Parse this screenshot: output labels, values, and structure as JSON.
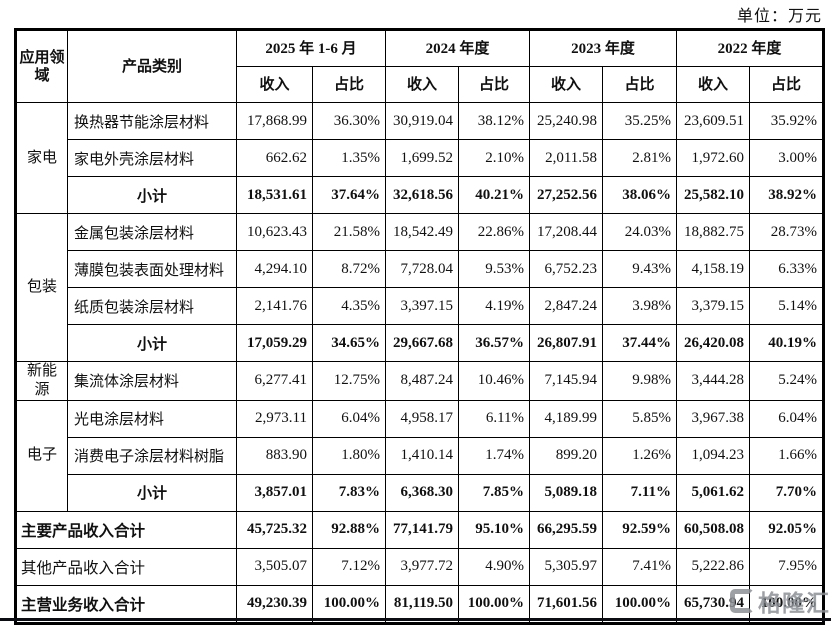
{
  "unit_label": "单位：万元",
  "watermark": {
    "text": "格隆汇"
  },
  "table": {
    "header": {
      "col_area": "应用领域",
      "col_category": "产品类别",
      "periods": [
        "2025 年 1-6 月",
        "2024 年度",
        "2023 年度",
        "2022 年度"
      ],
      "sub_income": "收入",
      "sub_ratio": "占比"
    },
    "rows": [
      {
        "cells": [
          {
            "text": "家电",
            "rowspan": 3,
            "cls": "a",
            "name": "area-cell-home-appliance"
          },
          {
            "text": "换热器节能涂层材料",
            "cls": "c",
            "name": "category-cell"
          },
          {
            "text": "17,868.99",
            "cls": "n",
            "name": "income-cell"
          },
          {
            "text": "36.30%",
            "cls": "n",
            "name": "ratio-cell"
          },
          {
            "text": "30,919.04",
            "cls": "n",
            "name": "income-cell"
          },
          {
            "text": "38.12%",
            "cls": "n",
            "name": "ratio-cell"
          },
          {
            "text": "25,240.98",
            "cls": "n",
            "name": "income-cell"
          },
          {
            "text": "35.25%",
            "cls": "n",
            "name": "ratio-cell"
          },
          {
            "text": "23,609.51",
            "cls": "n",
            "name": "income-cell"
          },
          {
            "text": "35.92%",
            "cls": "n",
            "name": "ratio-cell"
          }
        ]
      },
      {
        "cells": [
          {
            "text": "家电外壳涂层材料",
            "cls": "c",
            "name": "category-cell"
          },
          {
            "text": "662.62",
            "cls": "n",
            "name": "income-cell"
          },
          {
            "text": "1.35%",
            "cls": "n",
            "name": "ratio-cell"
          },
          {
            "text": "1,699.52",
            "cls": "n",
            "name": "income-cell"
          },
          {
            "text": "2.10%",
            "cls": "n",
            "name": "ratio-cell"
          },
          {
            "text": "2,011.58",
            "cls": "n",
            "name": "income-cell"
          },
          {
            "text": "2.81%",
            "cls": "n",
            "name": "ratio-cell"
          },
          {
            "text": "1,972.60",
            "cls": "n",
            "name": "income-cell"
          },
          {
            "text": "3.00%",
            "cls": "n",
            "name": "ratio-cell"
          }
        ]
      },
      {
        "bold": true,
        "cells": [
          {
            "text": "小计",
            "cls": "s",
            "name": "subtotal-label"
          },
          {
            "text": "18,531.61",
            "cls": "n",
            "name": "income-cell"
          },
          {
            "text": "37.64%",
            "cls": "n",
            "name": "ratio-cell"
          },
          {
            "text": "32,618.56",
            "cls": "n",
            "name": "income-cell"
          },
          {
            "text": "40.21%",
            "cls": "n",
            "name": "ratio-cell"
          },
          {
            "text": "27,252.56",
            "cls": "n",
            "name": "income-cell"
          },
          {
            "text": "38.06%",
            "cls": "n",
            "name": "ratio-cell"
          },
          {
            "text": "25,582.10",
            "cls": "n",
            "name": "income-cell"
          },
          {
            "text": "38.92%",
            "cls": "n",
            "name": "ratio-cell"
          }
        ]
      },
      {
        "cells": [
          {
            "text": "包装",
            "rowspan": 4,
            "cls": "a",
            "name": "area-cell-packaging"
          },
          {
            "text": "金属包装涂层材料",
            "cls": "c",
            "name": "category-cell"
          },
          {
            "text": "10,623.43",
            "cls": "n",
            "name": "income-cell"
          },
          {
            "text": "21.58%",
            "cls": "n",
            "name": "ratio-cell"
          },
          {
            "text": "18,542.49",
            "cls": "n",
            "name": "income-cell"
          },
          {
            "text": "22.86%",
            "cls": "n",
            "name": "ratio-cell"
          },
          {
            "text": "17,208.44",
            "cls": "n",
            "name": "income-cell"
          },
          {
            "text": "24.03%",
            "cls": "n",
            "name": "ratio-cell"
          },
          {
            "text": "18,882.75",
            "cls": "n",
            "name": "income-cell"
          },
          {
            "text": "28.73%",
            "cls": "n",
            "name": "ratio-cell"
          }
        ]
      },
      {
        "cells": [
          {
            "text": "薄膜包装表面处理材料",
            "cls": "c",
            "name": "category-cell"
          },
          {
            "text": "4,294.10",
            "cls": "n",
            "name": "income-cell"
          },
          {
            "text": "8.72%",
            "cls": "n",
            "name": "ratio-cell"
          },
          {
            "text": "7,728.04",
            "cls": "n",
            "name": "income-cell"
          },
          {
            "text": "9.53%",
            "cls": "n",
            "name": "ratio-cell"
          },
          {
            "text": "6,752.23",
            "cls": "n",
            "name": "income-cell"
          },
          {
            "text": "9.43%",
            "cls": "n",
            "name": "ratio-cell"
          },
          {
            "text": "4,158.19",
            "cls": "n",
            "name": "income-cell"
          },
          {
            "text": "6.33%",
            "cls": "n",
            "name": "ratio-cell"
          }
        ]
      },
      {
        "cells": [
          {
            "text": "纸质包装涂层材料",
            "cls": "c",
            "name": "category-cell"
          },
          {
            "text": "2,141.76",
            "cls": "n",
            "name": "income-cell"
          },
          {
            "text": "4.35%",
            "cls": "n",
            "name": "ratio-cell"
          },
          {
            "text": "3,397.15",
            "cls": "n",
            "name": "income-cell"
          },
          {
            "text": "4.19%",
            "cls": "n",
            "name": "ratio-cell"
          },
          {
            "text": "2,847.24",
            "cls": "n",
            "name": "income-cell"
          },
          {
            "text": "3.98%",
            "cls": "n",
            "name": "ratio-cell"
          },
          {
            "text": "3,379.15",
            "cls": "n",
            "name": "income-cell"
          },
          {
            "text": "5.14%",
            "cls": "n",
            "name": "ratio-cell"
          }
        ]
      },
      {
        "bold": true,
        "cells": [
          {
            "text": "小计",
            "cls": "s",
            "name": "subtotal-label"
          },
          {
            "text": "17,059.29",
            "cls": "n",
            "name": "income-cell"
          },
          {
            "text": "34.65%",
            "cls": "n",
            "name": "ratio-cell"
          },
          {
            "text": "29,667.68",
            "cls": "n",
            "name": "income-cell"
          },
          {
            "text": "36.57%",
            "cls": "n",
            "name": "ratio-cell"
          },
          {
            "text": "26,807.91",
            "cls": "n",
            "name": "income-cell"
          },
          {
            "text": "37.44%",
            "cls": "n",
            "name": "ratio-cell"
          },
          {
            "text": "26,420.08",
            "cls": "n",
            "name": "income-cell"
          },
          {
            "text": "40.19%",
            "cls": "n",
            "name": "ratio-cell"
          }
        ]
      },
      {
        "cells": [
          {
            "text": "新能源",
            "cls": "a",
            "name": "area-cell-new-energy"
          },
          {
            "text": "集流体涂层材料",
            "cls": "c",
            "name": "category-cell"
          },
          {
            "text": "6,277.41",
            "cls": "n",
            "name": "income-cell"
          },
          {
            "text": "12.75%",
            "cls": "n",
            "name": "ratio-cell"
          },
          {
            "text": "8,487.24",
            "cls": "n",
            "name": "income-cell"
          },
          {
            "text": "10.46%",
            "cls": "n",
            "name": "ratio-cell"
          },
          {
            "text": "7,145.94",
            "cls": "n",
            "name": "income-cell"
          },
          {
            "text": "9.98%",
            "cls": "n",
            "name": "ratio-cell"
          },
          {
            "text": "3,444.28",
            "cls": "n",
            "name": "income-cell"
          },
          {
            "text": "5.24%",
            "cls": "n",
            "name": "ratio-cell"
          }
        ]
      },
      {
        "cells": [
          {
            "text": "电子",
            "rowspan": 3,
            "cls": "a",
            "name": "area-cell-electronics"
          },
          {
            "text": "光电涂层材料",
            "cls": "c",
            "name": "category-cell"
          },
          {
            "text": "2,973.11",
            "cls": "n",
            "name": "income-cell"
          },
          {
            "text": "6.04%",
            "cls": "n",
            "name": "ratio-cell"
          },
          {
            "text": "4,958.17",
            "cls": "n",
            "name": "income-cell"
          },
          {
            "text": "6.11%",
            "cls": "n",
            "name": "ratio-cell"
          },
          {
            "text": "4,189.99",
            "cls": "n",
            "name": "income-cell"
          },
          {
            "text": "5.85%",
            "cls": "n",
            "name": "ratio-cell"
          },
          {
            "text": "3,967.38",
            "cls": "n",
            "name": "income-cell"
          },
          {
            "text": "6.04%",
            "cls": "n",
            "name": "ratio-cell"
          }
        ]
      },
      {
        "cells": [
          {
            "text": "消费电子涂层材料树脂",
            "cls": "c",
            "name": "category-cell"
          },
          {
            "text": "883.90",
            "cls": "n",
            "name": "income-cell"
          },
          {
            "text": "1.80%",
            "cls": "n",
            "name": "ratio-cell"
          },
          {
            "text": "1,410.14",
            "cls": "n",
            "name": "income-cell"
          },
          {
            "text": "1.74%",
            "cls": "n",
            "name": "ratio-cell"
          },
          {
            "text": "899.20",
            "cls": "n",
            "name": "income-cell"
          },
          {
            "text": "1.26%",
            "cls": "n",
            "name": "ratio-cell"
          },
          {
            "text": "1,094.23",
            "cls": "n",
            "name": "income-cell"
          },
          {
            "text": "1.66%",
            "cls": "n",
            "name": "ratio-cell"
          }
        ]
      },
      {
        "bold": true,
        "cells": [
          {
            "text": "小计",
            "cls": "s",
            "name": "subtotal-label"
          },
          {
            "text": "3,857.01",
            "cls": "n",
            "name": "income-cell"
          },
          {
            "text": "7.83%",
            "cls": "n",
            "name": "ratio-cell"
          },
          {
            "text": "6,368.30",
            "cls": "n",
            "name": "income-cell"
          },
          {
            "text": "7.85%",
            "cls": "n",
            "name": "ratio-cell"
          },
          {
            "text": "5,089.18",
            "cls": "n",
            "name": "income-cell"
          },
          {
            "text": "7.11%",
            "cls": "n",
            "name": "ratio-cell"
          },
          {
            "text": "5,061.62",
            "cls": "n",
            "name": "income-cell"
          },
          {
            "text": "7.70%",
            "cls": "n",
            "name": "ratio-cell"
          }
        ]
      },
      {
        "bold": true,
        "cells": [
          {
            "text": "主要产品收入合计",
            "colspan": 2,
            "cls": "t",
            "name": "total-label-main-products"
          },
          {
            "text": "45,725.32",
            "cls": "n",
            "name": "income-cell"
          },
          {
            "text": "92.88%",
            "cls": "n",
            "name": "ratio-cell"
          },
          {
            "text": "77,141.79",
            "cls": "n",
            "name": "income-cell"
          },
          {
            "text": "95.10%",
            "cls": "n",
            "name": "ratio-cell"
          },
          {
            "text": "66,295.59",
            "cls": "n",
            "name": "income-cell"
          },
          {
            "text": "92.59%",
            "cls": "n",
            "name": "ratio-cell"
          },
          {
            "text": "60,508.08",
            "cls": "n",
            "name": "income-cell"
          },
          {
            "text": "92.05%",
            "cls": "n",
            "name": "ratio-cell"
          }
        ]
      },
      {
        "cells": [
          {
            "text": "其他产品收入合计",
            "colspan": 2,
            "cls": "t",
            "name": "total-label-other-products"
          },
          {
            "text": "3,505.07",
            "cls": "n",
            "name": "income-cell"
          },
          {
            "text": "7.12%",
            "cls": "n",
            "name": "ratio-cell"
          },
          {
            "text": "3,977.72",
            "cls": "n",
            "name": "income-cell"
          },
          {
            "text": "4.90%",
            "cls": "n",
            "name": "ratio-cell"
          },
          {
            "text": "5,305.97",
            "cls": "n",
            "name": "income-cell"
          },
          {
            "text": "7.41%",
            "cls": "n",
            "name": "ratio-cell"
          },
          {
            "text": "5,222.86",
            "cls": "n",
            "name": "income-cell"
          },
          {
            "text": "7.95%",
            "cls": "n",
            "name": "ratio-cell"
          }
        ]
      },
      {
        "bold": true,
        "cells": [
          {
            "text": "主营业务收入合计",
            "colspan": 2,
            "cls": "t",
            "name": "total-label-main-business"
          },
          {
            "text": "49,230.39",
            "cls": "n",
            "name": "income-cell"
          },
          {
            "text": "100.00%",
            "cls": "n",
            "name": "ratio-cell"
          },
          {
            "text": "81,119.50",
            "cls": "n",
            "name": "income-cell"
          },
          {
            "text": "100.00%",
            "cls": "n",
            "name": "ratio-cell"
          },
          {
            "text": "71,601.56",
            "cls": "n",
            "name": "income-cell"
          },
          {
            "text": "100.00%",
            "cls": "n",
            "name": "ratio-cell"
          },
          {
            "text": "65,730.94",
            "cls": "n",
            "name": "income-cell"
          },
          {
            "text": "100.00%",
            "cls": "n",
            "name": "ratio-cell"
          }
        ]
      }
    ]
  }
}
